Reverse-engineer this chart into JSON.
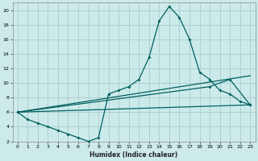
{
  "xlabel": "Humidex (Indice chaleur)",
  "bg_color": "#cceaea",
  "grid_color": "#aacccc",
  "line_color": "#006060",
  "xlim": [
    -0.5,
    23.5
  ],
  "ylim": [
    2,
    21
  ],
  "xticks": [
    0,
    1,
    2,
    3,
    4,
    5,
    6,
    7,
    8,
    9,
    10,
    11,
    12,
    13,
    14,
    15,
    16,
    17,
    18,
    19,
    20,
    21,
    22,
    23
  ],
  "yticks": [
    2,
    4,
    6,
    8,
    10,
    12,
    14,
    16,
    18,
    20
  ],
  "line1_x": [
    0,
    1,
    2,
    3,
    4,
    5,
    6,
    7,
    8,
    9,
    10,
    11,
    12,
    13,
    14,
    15,
    16,
    17,
    18,
    19,
    20,
    21,
    22,
    23
  ],
  "line1_y": [
    6.0,
    5.0,
    4.5,
    4.0,
    3.5,
    3.0,
    2.5,
    2.0,
    2.5,
    8.5,
    9.0,
    9.5,
    10.5,
    13.5,
    18.5,
    20.5,
    19.0,
    16.0,
    11.5,
    10.5,
    9.0,
    8.5,
    7.5,
    7.0
  ],
  "line2_x": [
    0,
    23
  ],
  "line2_y": [
    6.0,
    11.0
  ],
  "line3_x": [
    0,
    19,
    21,
    23
  ],
  "line3_y": [
    6.0,
    9.5,
    10.5,
    7.0
  ],
  "line4_x": [
    0,
    23
  ],
  "line4_y": [
    6.0,
    7.0
  ]
}
